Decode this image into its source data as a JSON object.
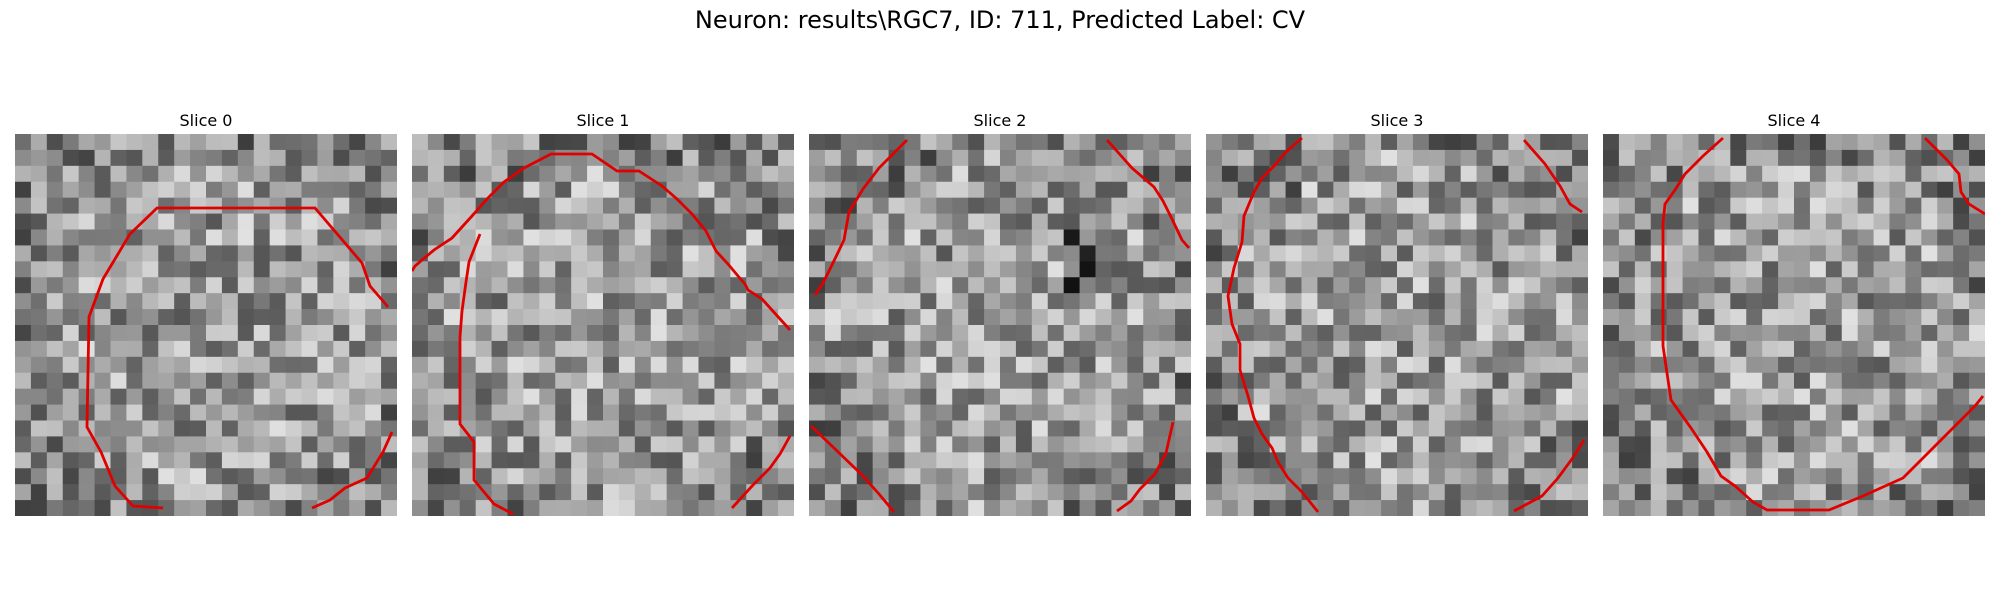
{
  "figure": {
    "title": "Neuron: results\\RGC7, ID: 711, Predicted Label: CV"
  },
  "colors": {
    "contour": "#e00000",
    "background": "#ffffff"
  },
  "panels": [
    {
      "title": "Slice 0"
    },
    {
      "title": "Slice 1"
    },
    {
      "title": "Slice 2"
    },
    {
      "title": "Slice 3"
    },
    {
      "title": "Slice 4"
    }
  ]
}
